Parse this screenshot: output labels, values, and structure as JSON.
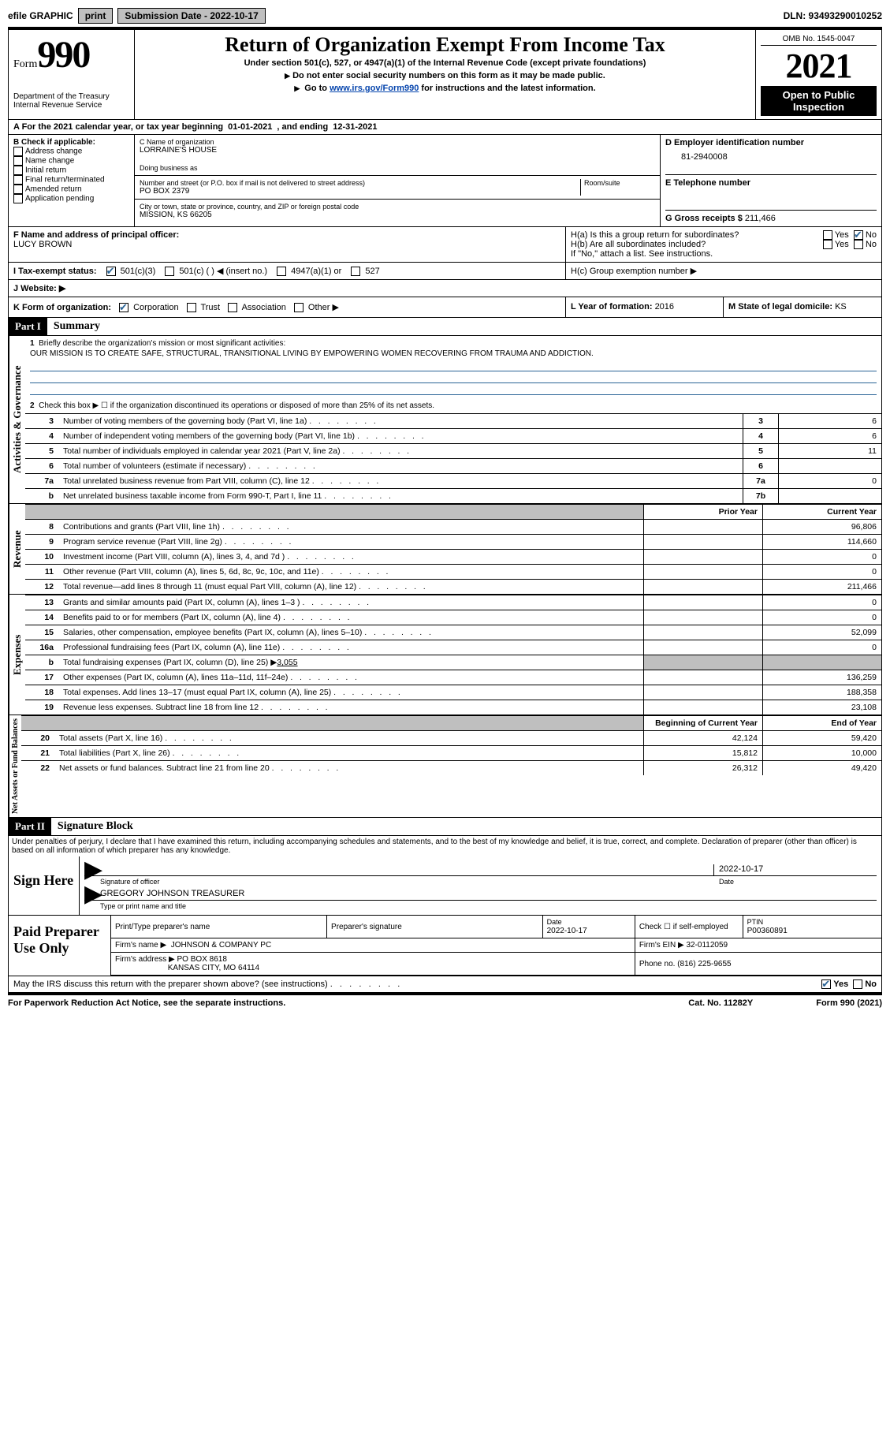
{
  "topbar": {
    "efile": "efile GRAPHIC",
    "print": "print",
    "sub_label": "Submission Date - 2022-10-17",
    "dln": "DLN: 93493290010252"
  },
  "header": {
    "form_word": "Form",
    "form_num": "990",
    "dept": "Department of the Treasury",
    "irs": "Internal Revenue Service",
    "title": "Return of Organization Exempt From Income Tax",
    "subtitle": "Under section 501(c), 527, or 4947(a)(1) of the Internal Revenue Code (except private foundations)",
    "instr1": "Do not enter social security numbers on this form as it may be made public.",
    "instr2_pre": "Go to ",
    "instr2_link": "www.irs.gov/Form990",
    "instr2_post": " for instructions and the latest information.",
    "omb": "OMB No. 1545-0047",
    "year": "2021",
    "open": "Open to Public Inspection"
  },
  "rowA": {
    "label": "A  For the 2021 calendar year, or tax year beginning ",
    "begin": "01-01-2021",
    "mid": "   , and ending ",
    "end": "12-31-2021"
  },
  "boxB": {
    "title": "B Check if applicable:",
    "o1": "Address change",
    "o2": "Name change",
    "o3": "Initial return",
    "o4": "Final return/terminated",
    "o5": "Amended return",
    "o6": "Application pending"
  },
  "boxC": {
    "name_label": "C Name of organization",
    "name": "LORRAINE'S HOUSE",
    "dba_label": "Doing business as",
    "addr_label": "Number and street (or P.O. box if mail is not delivered to street address)",
    "room_label": "Room/suite",
    "addr": "PO BOX 2379",
    "city_label": "City or town, state or province, country, and ZIP or foreign postal code",
    "city": "MISSION, KS  66205"
  },
  "boxD": {
    "label": "D Employer identification number",
    "ein": "81-2940008",
    "e_label": "E Telephone number",
    "g_label": "G Gross receipts $ ",
    "g_val": "211,466"
  },
  "rowF": {
    "label": "F  Name and address of principal officer:",
    "name": "LUCY BROWN"
  },
  "rowH": {
    "ha": "H(a)  Is this a group return for subordinates?",
    "hb": "H(b)  Are all subordinates included?",
    "hb_note": "If \"No,\" attach a list. See instructions.",
    "hc": "H(c)  Group exemption number ▶",
    "yes": "Yes",
    "no": "No"
  },
  "rowI": {
    "label": "I   Tax-exempt status:",
    "o1": "501(c)(3)",
    "o2": "501(c) (  ) ◀ (insert no.)",
    "o3": "4947(a)(1) or",
    "o4": "527"
  },
  "rowJ": {
    "label": "J   Website: ▶"
  },
  "rowK": {
    "label": "K Form of organization:",
    "o1": "Corporation",
    "o2": "Trust",
    "o3": "Association",
    "o4": "Other ▶",
    "l_label": "L Year of formation: ",
    "l_val": "2016",
    "m_label": "M State of legal domicile: ",
    "m_val": "KS"
  },
  "part1": {
    "header": "Part I",
    "title": "Summary",
    "vert1": "Activities & Governance",
    "vert2": "Revenue",
    "vert3": "Expenses",
    "vert4": "Net Assets or Fund Balances",
    "l1_label": "Briefly describe the organization's mission or most significant activities:",
    "l1_text": "OUR MISSION IS TO CREATE SAFE, STRUCTURAL, TRANSITIONAL LIVING BY EMPOWERING WOMEN RECOVERING FROM TRAUMA AND ADDICTION.",
    "l2": "Check this box ▶ ☐  if the organization discontinued its operations or disposed of more than 25% of its net assets.",
    "rows_gov": [
      {
        "n": "3",
        "t": "Number of voting members of the governing body (Part VI, line 1a)",
        "b": "3",
        "v": "6"
      },
      {
        "n": "4",
        "t": "Number of independent voting members of the governing body (Part VI, line 1b)",
        "b": "4",
        "v": "6"
      },
      {
        "n": "5",
        "t": "Total number of individuals employed in calendar year 2021 (Part V, line 2a)",
        "b": "5",
        "v": "11"
      },
      {
        "n": "6",
        "t": "Total number of volunteers (estimate if necessary)",
        "b": "6",
        "v": ""
      },
      {
        "n": "7a",
        "t": "Total unrelated business revenue from Part VIII, column (C), line 12",
        "b": "7a",
        "v": "0"
      },
      {
        "n": "b",
        "t": "Net unrelated business taxable income from Form 990-T, Part I, line 11",
        "b": "7b",
        "v": ""
      }
    ],
    "prior": "Prior Year",
    "current": "Current Year",
    "rows_rev": [
      {
        "n": "8",
        "t": "Contributions and grants (Part VIII, line 1h)",
        "p": "",
        "c": "96,806"
      },
      {
        "n": "9",
        "t": "Program service revenue (Part VIII, line 2g)",
        "p": "",
        "c": "114,660"
      },
      {
        "n": "10",
        "t": "Investment income (Part VIII, column (A), lines 3, 4, and 7d )",
        "p": "",
        "c": "0"
      },
      {
        "n": "11",
        "t": "Other revenue (Part VIII, column (A), lines 5, 6d, 8c, 9c, 10c, and 11e)",
        "p": "",
        "c": "0"
      },
      {
        "n": "12",
        "t": "Total revenue—add lines 8 through 11 (must equal Part VIII, column (A), line 12)",
        "p": "",
        "c": "211,466"
      }
    ],
    "rows_exp": [
      {
        "n": "13",
        "t": "Grants and similar amounts paid (Part IX, column (A), lines 1–3 )",
        "p": "",
        "c": "0"
      },
      {
        "n": "14",
        "t": "Benefits paid to or for members (Part IX, column (A), line 4)",
        "p": "",
        "c": "0"
      },
      {
        "n": "15",
        "t": "Salaries, other compensation, employee benefits (Part IX, column (A), lines 5–10)",
        "p": "",
        "c": "52,099"
      },
      {
        "n": "16a",
        "t": "Professional fundraising fees (Part IX, column (A), line 11e)",
        "p": "",
        "c": "0"
      }
    ],
    "l16b_label": "Total fundraising expenses (Part IX, column (D), line 25) ▶",
    "l16b_val": "3,055",
    "rows_exp2": [
      {
        "n": "17",
        "t": "Other expenses (Part IX, column (A), lines 11a–11d, 11f–24e)",
        "p": "",
        "c": "136,259"
      },
      {
        "n": "18",
        "t": "Total expenses. Add lines 13–17 (must equal Part IX, column (A), line 25)",
        "p": "",
        "c": "188,358"
      },
      {
        "n": "19",
        "t": "Revenue less expenses. Subtract line 18 from line 12",
        "p": "",
        "c": "23,108"
      }
    ],
    "begin": "Beginning of Current Year",
    "end": "End of Year",
    "rows_net": [
      {
        "n": "20",
        "t": "Total assets (Part X, line 16)",
        "p": "42,124",
        "c": "59,420"
      },
      {
        "n": "21",
        "t": "Total liabilities (Part X, line 26)",
        "p": "15,812",
        "c": "10,000"
      },
      {
        "n": "22",
        "t": "Net assets or fund balances. Subtract line 21 from line 20",
        "p": "26,312",
        "c": "49,420"
      }
    ]
  },
  "part2": {
    "header": "Part II",
    "title": "Signature Block",
    "decl": "Under penalties of perjury, I declare that I have examined this return, including accompanying schedules and statements, and to the best of my knowledge and belief, it is true, correct, and complete. Declaration of preparer (other than officer) is based on all information of which preparer has any knowledge.",
    "sign_here": "Sign Here",
    "sig_officer": "Signature of officer",
    "date": "Date",
    "sig_date": "2022-10-17",
    "name_title": "GREGORY JOHNSON  TREASURER",
    "name_title_label": "Type or print name and title",
    "paid": "Paid Preparer Use Only",
    "prep_name_label": "Print/Type preparer's name",
    "prep_sig_label": "Preparer's signature",
    "prep_date_label": "Date",
    "prep_date": "2022-10-17",
    "check_if": "Check ☐ if self-employed",
    "ptin_label": "PTIN",
    "ptin": "P00360891",
    "firm_name_label": "Firm's name    ▶",
    "firm_name": "JOHNSON & COMPANY PC",
    "firm_ein_label": "Firm's EIN ▶",
    "firm_ein": "32-0112059",
    "firm_addr_label": "Firm's address ▶",
    "firm_addr1": "PO BOX 8618",
    "firm_addr2": "KANSAS CITY, MO  64114",
    "phone_label": "Phone no.",
    "phone": "(816) 225-9655",
    "may_irs": "May the IRS discuss this return with the preparer shown above? (see instructions)",
    "yes": "Yes",
    "no": "No"
  },
  "footer": {
    "notice": "For Paperwork Reduction Act Notice, see the separate instructions.",
    "cat": "Cat. No. 11282Y",
    "form": "Form 990 (2021)"
  }
}
